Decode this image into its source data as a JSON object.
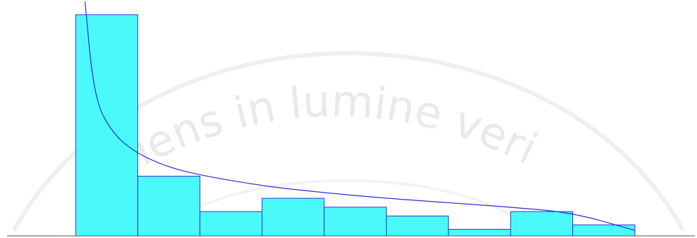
{
  "watermark": {
    "motto": "sapiens in lumine veritatis",
    "visible_text": "iens in lumine veri"
  },
  "colors": {
    "bar_fill": "#4af9fa",
    "bar_stroke": "#2f35d6",
    "curve": "#2b2bd4",
    "axis": "#555555",
    "watermark": "#e9e9e9"
  },
  "chart_data": {
    "type": "bar",
    "subtype": "histogram-with-fitted-curve",
    "title": "",
    "xlabel": "",
    "ylabel": "",
    "grid": false,
    "legend": "none",
    "bins": 9,
    "values": [
      100,
      27,
      11,
      17,
      13,
      9,
      3,
      11,
      5
    ],
    "ylim": [
      0,
      106
    ],
    "curve": {
      "shape": "decreasing power-law",
      "points": [
        [
          0.15,
          106
        ],
        [
          0.3,
          62
        ],
        [
          0.6,
          46
        ],
        [
          1.0,
          37
        ],
        [
          1.5,
          31
        ],
        [
          2,
          27.5
        ],
        [
          3,
          22.6
        ],
        [
          4,
          19.5
        ],
        [
          5,
          17
        ],
        [
          6,
          15
        ],
        [
          7,
          13
        ],
        [
          8,
          10.5
        ],
        [
          9,
          2.5
        ]
      ]
    }
  }
}
